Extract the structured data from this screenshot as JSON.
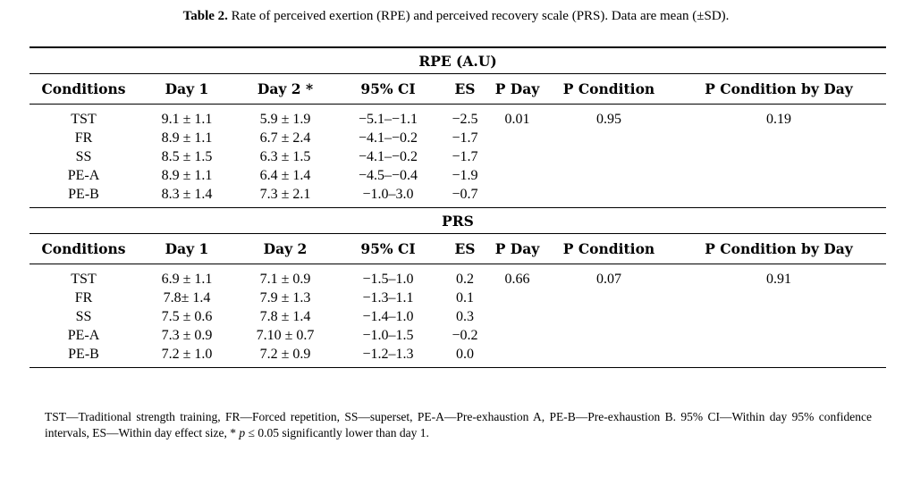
{
  "caption": {
    "label": "Table 2.",
    "text": " Rate of perceived exertion (RPE) and perceived recovery scale (PRS). Data are mean (±SD)."
  },
  "sections": [
    {
      "title": "RPE (A.U)",
      "headers": [
        "Conditions",
        "Day 1",
        "Day 2 *",
        "95% CI",
        "ES",
        "P Day",
        "P Condition",
        "P Condition by Day"
      ],
      "rows": [
        [
          "TST",
          "9.1 ± 1.1",
          "5.9 ± 1.9",
          "−5.1–−1.1",
          "−2.5",
          "0.01",
          "0.95",
          "0.19"
        ],
        [
          "FR",
          "8.9 ± 1.1",
          "6.7 ± 2.4",
          "−4.1–−0.2",
          "−1.7",
          "",
          "",
          ""
        ],
        [
          "SS",
          "8.5 ± 1.5",
          "6.3 ± 1.5",
          "−4.1–−0.2",
          "−1.7",
          "",
          "",
          ""
        ],
        [
          "PE-A",
          "8.9 ± 1.1",
          "6.4 ± 1.4",
          "−4.5–−0.4",
          "−1.9",
          "",
          "",
          ""
        ],
        [
          "PE-B",
          "8.3 ± 1.4",
          "7.3 ± 2.1",
          "−1.0–3.0",
          "−0.7",
          "",
          "",
          ""
        ]
      ]
    },
    {
      "title": "PRS",
      "headers": [
        "Conditions",
        "Day 1",
        "Day 2",
        "95% CI",
        "ES",
        "P Day",
        "P Condition",
        "P Condition by Day"
      ],
      "rows": [
        [
          "TST",
          "6.9 ± 1.1",
          "7.1 ± 0.9",
          "−1.5–1.0",
          "0.2",
          "0.66",
          "0.07",
          "0.91"
        ],
        [
          "FR",
          "7.8± 1.4",
          "7.9 ± 1.3",
          "−1.3–1.1",
          "0.1",
          "",
          "",
          ""
        ],
        [
          "SS",
          "7.5 ± 0.6",
          "7.8 ± 1.4",
          "−1.4–1.0",
          "0.3",
          "",
          "",
          ""
        ],
        [
          "PE-A",
          "7.3 ± 0.9",
          "7.10 ± 0.7",
          "−1.0–1.5",
          "−0.2",
          "",
          "",
          ""
        ],
        [
          "PE-B",
          "7.2 ± 1.0",
          "7.2 ± 0.9",
          "−1.2–1.3",
          "0.0",
          "",
          "",
          ""
        ]
      ]
    }
  ],
  "footnote": {
    "part1": "TST—Traditional strength training, FR—Forced repetition, SS—superset, PE-A—Pre-exhaustion A, PE-B—Pre-exhaustion B. 95% CI—Within day 95% confidence intervals, ES—Within day effect size, * ",
    "p": "p",
    "part2": " ≤ 0.05 significantly lower than day 1."
  }
}
